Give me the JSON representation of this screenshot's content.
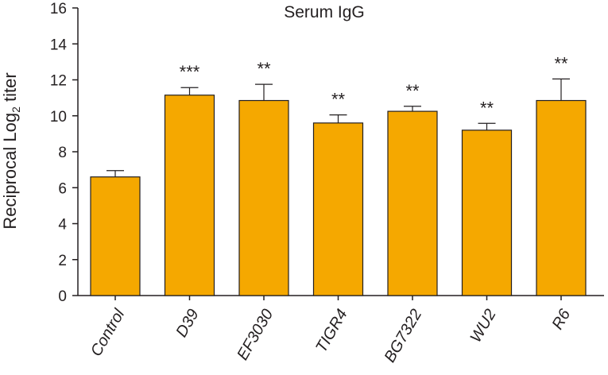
{
  "chart_data": {
    "type": "bar",
    "title": "Serum IgG",
    "ylabel": {
      "prefix": "Reciprocal Log",
      "subscript": "2",
      "suffix": " titer"
    },
    "xlabel": "",
    "ylim": [
      0,
      16
    ],
    "yticks": [
      0,
      2,
      4,
      6,
      8,
      10,
      12,
      14,
      16
    ],
    "categories": [
      "Control",
      "D39",
      "EF3030",
      "TIGR4",
      "BG7322",
      "WU2",
      "R6"
    ],
    "values": [
      6.6,
      11.15,
      10.85,
      9.6,
      10.25,
      9.2,
      10.85
    ],
    "errors": [
      0.35,
      0.42,
      0.9,
      0.45,
      0.28,
      0.38,
      1.2
    ],
    "significance": [
      "",
      "***",
      "**",
      "**",
      "**",
      "**",
      "**"
    ],
    "bar_color": "#f5a800",
    "grid": false
  }
}
